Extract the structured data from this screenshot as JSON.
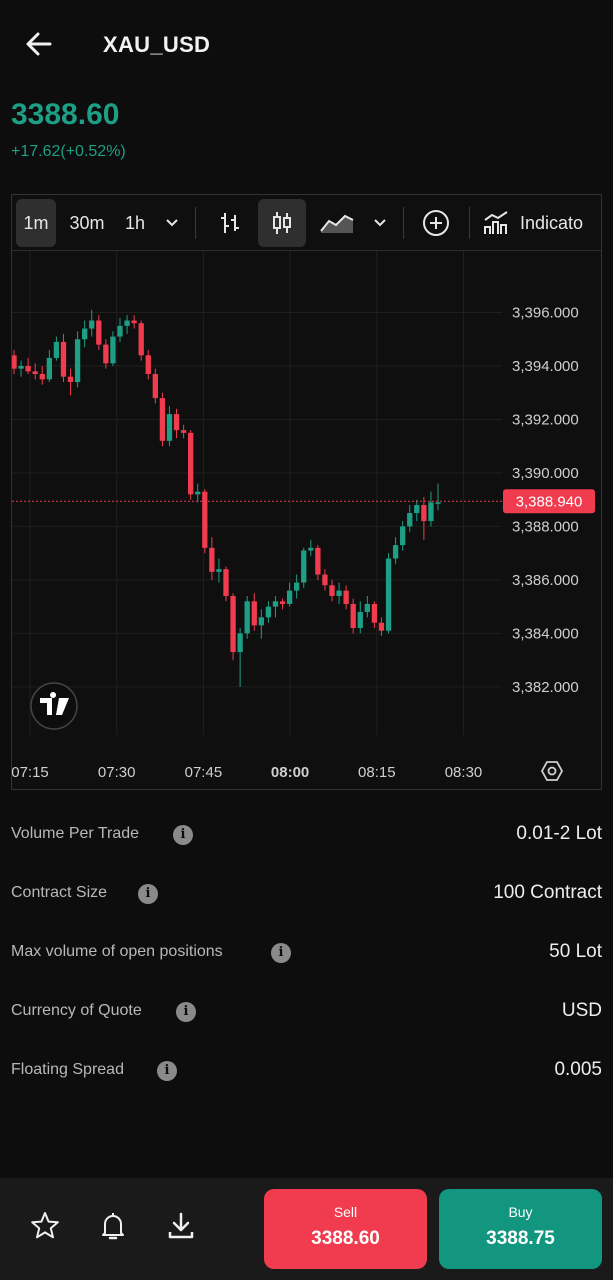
{
  "header": {
    "title": "XAU_USD",
    "price": "3388.60",
    "change": "+17.62(+0.52%)"
  },
  "toolbar": {
    "intervals": [
      "1m",
      "30m",
      "1h"
    ],
    "selected_interval": "1m",
    "indicators_label": "Indicato"
  },
  "chart_data": {
    "type": "candlestick",
    "x_ticks": [
      "07:15",
      "07:30",
      "07:45",
      "08:00",
      "08:15",
      "08:30"
    ],
    "y_ticks": [
      "3,396.000",
      "3,394.000",
      "3,392.000",
      "3,390.000",
      "3,388.000",
      "3,386.000",
      "3,384.000",
      "3,382.000"
    ],
    "ylim": [
      3380.2,
      3398.3
    ],
    "current_price_label": "3,388.940",
    "current_price": 3388.94,
    "up_color": "#1e9e84",
    "down_color": "#f03c4e",
    "candles": [
      [
        3394.4,
        3394.6,
        3393.7,
        3393.9
      ],
      [
        3393.9,
        3394.2,
        3393.6,
        3394.0
      ],
      [
        3394.0,
        3394.3,
        3393.7,
        3393.8
      ],
      [
        3393.8,
        3394.1,
        3393.5,
        3393.7
      ],
      [
        3393.7,
        3394.0,
        3393.3,
        3393.5
      ],
      [
        3393.5,
        3394.6,
        3393.4,
        3394.3
      ],
      [
        3394.3,
        3395.1,
        3394.2,
        3394.9
      ],
      [
        3394.9,
        3395.2,
        3393.4,
        3393.6
      ],
      [
        3393.6,
        3393.9,
        3392.9,
        3393.4
      ],
      [
        3393.4,
        3395.3,
        3393.2,
        3395.0
      ],
      [
        3395.0,
        3395.7,
        3394.7,
        3395.4
      ],
      [
        3395.4,
        3396.1,
        3395.1,
        3395.7
      ],
      [
        3395.7,
        3395.9,
        3394.6,
        3394.8
      ],
      [
        3394.8,
        3395.0,
        3393.9,
        3394.1
      ],
      [
        3394.1,
        3395.3,
        3394.0,
        3395.1
      ],
      [
        3395.1,
        3395.8,
        3394.9,
        3395.5
      ],
      [
        3395.5,
        3395.9,
        3395.2,
        3395.7
      ],
      [
        3395.7,
        3395.9,
        3395.4,
        3395.6
      ],
      [
        3395.6,
        3395.7,
        3394.2,
        3394.4
      ],
      [
        3394.4,
        3394.6,
        3393.5,
        3393.7
      ],
      [
        3393.7,
        3393.9,
        3392.6,
        3392.8
      ],
      [
        3392.8,
        3393.0,
        3391.0,
        3391.2
      ],
      [
        3391.2,
        3392.5,
        3391.0,
        3392.2
      ],
      [
        3392.2,
        3392.4,
        3391.3,
        3391.6
      ],
      [
        3391.6,
        3391.8,
        3391.3,
        3391.5
      ],
      [
        3391.5,
        3391.6,
        3389.0,
        3389.2
      ],
      [
        3389.2,
        3389.6,
        3388.9,
        3389.3
      ],
      [
        3389.3,
        3389.4,
        3387.0,
        3387.2
      ],
      [
        3387.2,
        3387.6,
        3386.0,
        3386.3
      ],
      [
        3386.3,
        3386.8,
        3385.9,
        3386.4
      ],
      [
        3386.4,
        3386.5,
        3385.2,
        3385.4
      ],
      [
        3385.4,
        3385.5,
        3383.0,
        3383.3
      ],
      [
        3383.3,
        3384.2,
        3382.0,
        3384.0
      ],
      [
        3384.0,
        3385.4,
        3383.8,
        3385.2
      ],
      [
        3385.2,
        3385.5,
        3384.1,
        3384.3
      ],
      [
        3384.3,
        3384.9,
        3383.8,
        3384.6
      ],
      [
        3384.6,
        3385.2,
        3384.4,
        3385.0
      ],
      [
        3385.0,
        3385.4,
        3384.6,
        3385.2
      ],
      [
        3385.2,
        3385.3,
        3384.9,
        3385.1
      ],
      [
        3385.1,
        3385.9,
        3385.0,
        3385.6
      ],
      [
        3385.6,
        3386.2,
        3385.3,
        3385.9
      ],
      [
        3385.9,
        3387.2,
        3385.7,
        3387.1
      ],
      [
        3387.1,
        3387.5,
        3386.9,
        3387.2
      ],
      [
        3387.2,
        3387.3,
        3386.0,
        3386.2
      ],
      [
        3386.2,
        3386.4,
        3385.6,
        3385.8
      ],
      [
        3385.8,
        3386.0,
        3385.2,
        3385.4
      ],
      [
        3385.4,
        3385.9,
        3385.1,
        3385.6
      ],
      [
        3385.6,
        3385.8,
        3384.9,
        3385.1
      ],
      [
        3385.1,
        3385.3,
        3384.0,
        3384.2
      ],
      [
        3384.2,
        3385.2,
        3384.0,
        3384.8
      ],
      [
        3384.8,
        3385.4,
        3384.6,
        3385.1
      ],
      [
        3385.1,
        3385.2,
        3384.2,
        3384.4
      ],
      [
        3384.4,
        3384.6,
        3383.9,
        3384.1
      ],
      [
        3384.1,
        3387.0,
        3384.0,
        3386.8
      ],
      [
        3386.8,
        3387.6,
        3386.6,
        3387.3
      ],
      [
        3387.3,
        3388.2,
        3387.1,
        3388.0
      ],
      [
        3388.0,
        3388.8,
        3387.8,
        3388.5
      ],
      [
        3388.5,
        3389.0,
        3388.2,
        3388.8
      ],
      [
        3388.8,
        3389.1,
        3387.5,
        3388.2
      ],
      [
        3388.2,
        3389.3,
        3388.0,
        3388.9
      ],
      [
        3388.9,
        3389.6,
        3388.6,
        3388.9
      ]
    ]
  },
  "specs": [
    {
      "label": "Volume Per Trade",
      "value": "0.01-2 Lot"
    },
    {
      "label": "Contract Size",
      "value": "100 Contract"
    },
    {
      "label": "Max volume of open positions",
      "value": "50 Lot"
    },
    {
      "label": "Currency of Quote",
      "value": "USD"
    },
    {
      "label": "Floating Spread",
      "value": "0.005"
    }
  ],
  "actions": {
    "sell_label": "Sell",
    "sell_price": "3388.60",
    "buy_label": "Buy",
    "buy_price": "3388.75"
  }
}
